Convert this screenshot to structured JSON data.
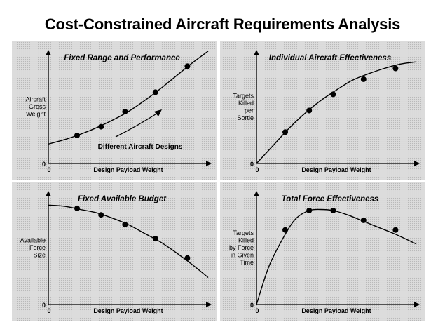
{
  "title": "Cost-Constrained Aircraft Requirements Analysis",
  "chart_data": [
    {
      "type": "line",
      "title": "Fixed Range and Performance",
      "xlabel": "Design Payload Weight",
      "ylabel": [
        "Aircraft",
        "Gross",
        "Weight"
      ],
      "origin_label": "0",
      "annotation": "Different Aircraft Designs",
      "xlim": [
        0,
        10
      ],
      "ylim": [
        0,
        10
      ],
      "curve": {
        "x": [
          0,
          1,
          2,
          3,
          4,
          5,
          6,
          7,
          8,
          9,
          10
        ],
        "y": [
          1.8,
          2.2,
          2.7,
          3.3,
          4.0,
          4.8,
          5.8,
          6.9,
          8.1,
          9.3,
          10.4
        ]
      },
      "points": {
        "x": [
          1.8,
          3.3,
          4.8,
          6.7,
          8.7
        ],
        "y": [
          2.6,
          3.4,
          4.8,
          6.6,
          9.0
        ]
      }
    },
    {
      "type": "line",
      "title": "Individual Aircraft Effectiveness",
      "xlabel": "Design Payload Weight",
      "ylabel": [
        "Targets",
        "Killed",
        "per",
        "Sortie"
      ],
      "origin_label": "0",
      "xlim": [
        0,
        10
      ],
      "ylim": [
        0,
        10
      ],
      "curve": {
        "x": [
          0,
          1,
          2,
          3,
          4,
          5,
          6,
          7,
          8,
          9,
          10
        ],
        "y": [
          0,
          1.6,
          3.2,
          4.6,
          5.8,
          6.8,
          7.7,
          8.3,
          8.8,
          9.2,
          9.4
        ]
      },
      "points": {
        "x": [
          1.8,
          3.3,
          4.8,
          6.7,
          8.7
        ],
        "y": [
          2.9,
          4.9,
          6.4,
          7.8,
          8.8
        ]
      }
    },
    {
      "type": "line",
      "title": "Fixed Available Budget",
      "xlabel": "Design Payload Weight",
      "ylabel": [
        "Available",
        "Force",
        "Size"
      ],
      "origin_label": "0",
      "xlim": [
        0,
        10
      ],
      "ylim": [
        0,
        10
      ],
      "curve": {
        "x": [
          0,
          1,
          2,
          3,
          4,
          5,
          6,
          7,
          8,
          9,
          10
        ],
        "y": [
          9.2,
          9.1,
          8.8,
          8.5,
          8.0,
          7.4,
          6.6,
          5.8,
          4.8,
          3.7,
          2.5
        ]
      },
      "points": {
        "x": [
          1.8,
          3.3,
          4.8,
          6.7,
          8.7
        ],
        "y": [
          8.9,
          8.3,
          7.4,
          6.1,
          4.3
        ]
      }
    },
    {
      "type": "line",
      "title": "Total Force Effectiveness",
      "xlabel": "Design Payload Weight",
      "ylabel": [
        "Targets",
        "Killed",
        "by Force",
        "in Given",
        "Time"
      ],
      "origin_label": "0",
      "xlim": [
        0,
        10
      ],
      "ylim": [
        0,
        10
      ],
      "curve": {
        "x": [
          0,
          0.8,
          1.8,
          2.5,
          3.3,
          4.0,
          4.8,
          5.7,
          6.7,
          7.7,
          8.7,
          10
        ],
        "y": [
          0,
          3.6,
          6.5,
          8.0,
          8.7,
          8.8,
          8.7,
          8.3,
          7.7,
          7.1,
          6.5,
          5.6
        ]
      },
      "points": {
        "x": [
          1.8,
          3.3,
          4.8,
          6.7,
          8.7
        ],
        "y": [
          6.9,
          8.7,
          8.7,
          7.8,
          6.9
        ]
      }
    }
  ]
}
